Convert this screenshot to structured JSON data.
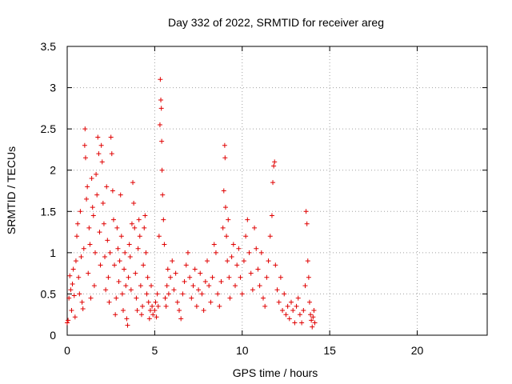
{
  "chart_data": {
    "type": "scatter",
    "title": "Day 332 of 2022, SRMTID for receiver areg",
    "xlabel": "GPS time / hours",
    "ylabel": "SRMTID / TECUs",
    "xlim": [
      0,
      24
    ],
    "ylim": [
      0,
      3.5
    ],
    "xticks": [
      0,
      5,
      10,
      15,
      20
    ],
    "yticks": [
      0,
      0.5,
      1,
      1.5,
      2,
      2.5,
      3,
      3.5
    ],
    "xtick_labels": [
      "0",
      "5",
      "10",
      "15",
      "20"
    ],
    "ytick_labels": [
      "0",
      "0.5",
      "1",
      "1.5",
      "2",
      "2.5",
      "3",
      "3.5"
    ],
    "grid": true,
    "marker": "+",
    "color": "#e00000",
    "series": [
      {
        "name": "SRMTID",
        "points": [
          [
            0.0,
            0.15
          ],
          [
            0.05,
            0.18
          ],
          [
            0.1,
            0.45
          ],
          [
            0.15,
            0.72
          ],
          [
            0.2,
            0.55
          ],
          [
            0.25,
            0.3
          ],
          [
            0.3,
            0.62
          ],
          [
            0.35,
            0.8
          ],
          [
            0.4,
            0.48
          ],
          [
            0.45,
            0.22
          ],
          [
            0.5,
            0.9
          ],
          [
            0.55,
            1.2
          ],
          [
            0.6,
            1.35
          ],
          [
            0.65,
            0.7
          ],
          [
            0.7,
            0.5
          ],
          [
            0.75,
            1.5
          ],
          [
            0.8,
            0.95
          ],
          [
            0.85,
            0.4
          ],
          [
            0.9,
            0.32
          ],
          [
            0.95,
            1.05
          ],
          [
            1.0,
            2.3
          ],
          [
            1.02,
            2.5
          ],
          [
            1.05,
            2.15
          ],
          [
            1.1,
            1.65
          ],
          [
            1.15,
            1.8
          ],
          [
            1.2,
            0.75
          ],
          [
            1.25,
            1.3
          ],
          [
            1.3,
            1.1
          ],
          [
            1.35,
            0.45
          ],
          [
            1.4,
            1.9
          ],
          [
            1.45,
            1.55
          ],
          [
            1.5,
            1.45
          ],
          [
            1.55,
            0.6
          ],
          [
            1.6,
            1.0
          ],
          [
            1.65,
            1.95
          ],
          [
            1.7,
            1.7
          ],
          [
            1.75,
            2.4
          ],
          [
            1.8,
            2.2
          ],
          [
            1.85,
            1.25
          ],
          [
            1.9,
            0.85
          ],
          [
            1.95,
            2.3
          ],
          [
            2.0,
            2.1
          ],
          [
            2.05,
            1.6
          ],
          [
            2.1,
            1.35
          ],
          [
            2.15,
            0.95
          ],
          [
            2.2,
            0.55
          ],
          [
            2.25,
            1.8
          ],
          [
            2.3,
            1.15
          ],
          [
            2.35,
            0.7
          ],
          [
            2.4,
            0.4
          ],
          [
            2.45,
            1.0
          ],
          [
            2.5,
            2.4
          ],
          [
            2.55,
            2.2
          ],
          [
            2.6,
            1.75
          ],
          [
            2.65,
            1.4
          ],
          [
            2.7,
            0.85
          ],
          [
            2.75,
            0.25
          ],
          [
            2.8,
            0.45
          ],
          [
            2.85,
            1.3
          ],
          [
            2.9,
            1.05
          ],
          [
            2.95,
            0.65
          ],
          [
            3.0,
            0.9
          ],
          [
            3.05,
            1.7
          ],
          [
            3.1,
            1.2
          ],
          [
            3.15,
            0.5
          ],
          [
            3.2,
            0.3
          ],
          [
            3.25,
            0.8
          ],
          [
            3.3,
            1.0
          ],
          [
            3.35,
            0.6
          ],
          [
            3.4,
            0.2
          ],
          [
            3.45,
            0.12
          ],
          [
            3.5,
            0.7
          ],
          [
            3.55,
            1.1
          ],
          [
            3.6,
            0.95
          ],
          [
            3.65,
            0.55
          ],
          [
            3.7,
            1.35
          ],
          [
            3.75,
            1.85
          ],
          [
            3.8,
            1.6
          ],
          [
            3.85,
            1.3
          ],
          [
            3.9,
            0.75
          ],
          [
            3.95,
            0.45
          ],
          [
            4.0,
            0.3
          ],
          [
            4.05,
            1.05
          ],
          [
            4.1,
            1.4
          ],
          [
            4.15,
            1.2
          ],
          [
            4.2,
            0.6
          ],
          [
            4.25,
            0.25
          ],
          [
            4.3,
            0.35
          ],
          [
            4.35,
            0.85
          ],
          [
            4.4,
            1.3
          ],
          [
            4.45,
            1.45
          ],
          [
            4.5,
            1.0
          ],
          [
            4.55,
            0.5
          ],
          [
            4.6,
            0.7
          ],
          [
            4.65,
            0.4
          ],
          [
            4.7,
            0.2
          ],
          [
            4.75,
            0.3
          ],
          [
            4.8,
            0.6
          ],
          [
            4.85,
            0.35
          ],
          [
            4.9,
            0.25
          ],
          [
            5.0,
            0.3
          ],
          [
            5.05,
            0.4
          ],
          [
            5.1,
            0.22
          ],
          [
            5.15,
            0.5
          ],
          [
            5.2,
            0.35
          ],
          [
            5.25,
            1.2
          ],
          [
            5.3,
            2.55
          ],
          [
            5.32,
            3.1
          ],
          [
            5.35,
            2.85
          ],
          [
            5.38,
            2.75
          ],
          [
            5.4,
            2.35
          ],
          [
            5.42,
            2.0
          ],
          [
            5.45,
            1.7
          ],
          [
            5.5,
            1.4
          ],
          [
            5.55,
            1.1
          ],
          [
            5.6,
            0.45
          ],
          [
            5.65,
            0.35
          ],
          [
            5.7,
            0.6
          ],
          [
            5.75,
            0.8
          ],
          [
            5.8,
            0.5
          ],
          [
            5.9,
            0.7
          ],
          [
            6.0,
            0.9
          ],
          [
            6.1,
            0.55
          ],
          [
            6.2,
            0.75
          ],
          [
            6.3,
            0.4
          ],
          [
            6.4,
            0.3
          ],
          [
            6.5,
            0.2
          ],
          [
            6.6,
            0.5
          ],
          [
            6.7,
            0.65
          ],
          [
            6.8,
            0.85
          ],
          [
            6.9,
            1.0
          ],
          [
            7.0,
            0.7
          ],
          [
            7.1,
            0.45
          ],
          [
            7.2,
            0.6
          ],
          [
            7.3,
            0.8
          ],
          [
            7.4,
            0.35
          ],
          [
            7.5,
            0.55
          ],
          [
            7.6,
            0.75
          ],
          [
            7.7,
            0.5
          ],
          [
            7.8,
            0.3
          ],
          [
            7.9,
            0.65
          ],
          [
            8.0,
            0.9
          ],
          [
            8.1,
            0.6
          ],
          [
            8.2,
            0.4
          ],
          [
            8.3,
            0.7
          ],
          [
            8.4,
            1.1
          ],
          [
            8.5,
            1.0
          ],
          [
            8.6,
            0.5
          ],
          [
            8.7,
            0.35
          ],
          [
            8.8,
            0.65
          ],
          [
            8.9,
            1.3
          ],
          [
            8.95,
            1.75
          ],
          [
            9.0,
            2.3
          ],
          [
            9.02,
            2.15
          ],
          [
            9.05,
            1.55
          ],
          [
            9.1,
            1.2
          ],
          [
            9.15,
            0.9
          ],
          [
            9.2,
            1.4
          ],
          [
            9.25,
            0.7
          ],
          [
            9.3,
            0.45
          ],
          [
            9.4,
            0.95
          ],
          [
            9.5,
            1.1
          ],
          [
            9.6,
            0.6
          ],
          [
            9.7,
            0.85
          ],
          [
            9.8,
            1.05
          ],
          [
            9.9,
            0.7
          ],
          [
            10.0,
            0.5
          ],
          [
            10.1,
            0.9
          ],
          [
            10.2,
            1.2
          ],
          [
            10.3,
            1.4
          ],
          [
            10.4,
            1.0
          ],
          [
            10.5,
            0.75
          ],
          [
            10.6,
            0.55
          ],
          [
            10.7,
            1.3
          ],
          [
            10.8,
            1.05
          ],
          [
            10.9,
            0.8
          ],
          [
            11.0,
            0.6
          ],
          [
            11.1,
            1.0
          ],
          [
            11.2,
            0.45
          ],
          [
            11.3,
            0.35
          ],
          [
            11.4,
            0.7
          ],
          [
            11.5,
            0.9
          ],
          [
            11.6,
            1.2
          ],
          [
            11.7,
            1.45
          ],
          [
            11.75,
            1.85
          ],
          [
            11.8,
            2.05
          ],
          [
            11.85,
            2.1
          ],
          [
            11.9,
            0.85
          ],
          [
            12.0,
            0.55
          ],
          [
            12.1,
            0.4
          ],
          [
            12.2,
            0.7
          ],
          [
            12.3,
            0.3
          ],
          [
            12.4,
            0.5
          ],
          [
            12.5,
            0.25
          ],
          [
            12.6,
            0.35
          ],
          [
            12.7,
            0.2
          ],
          [
            12.8,
            0.4
          ],
          [
            12.9,
            0.3
          ],
          [
            13.0,
            0.15
          ],
          [
            13.1,
            0.35
          ],
          [
            13.2,
            0.45
          ],
          [
            13.3,
            0.25
          ],
          [
            13.4,
            0.15
          ],
          [
            13.5,
            0.3
          ],
          [
            13.6,
            0.6
          ],
          [
            13.65,
            1.5
          ],
          [
            13.7,
            1.35
          ],
          [
            13.75,
            0.9
          ],
          [
            13.8,
            0.7
          ],
          [
            13.85,
            0.4
          ],
          [
            13.9,
            0.25
          ],
          [
            13.95,
            0.18
          ],
          [
            14.0,
            0.1
          ],
          [
            14.05,
            0.22
          ],
          [
            14.1,
            0.3
          ],
          [
            14.15,
            0.15
          ]
        ]
      }
    ]
  }
}
